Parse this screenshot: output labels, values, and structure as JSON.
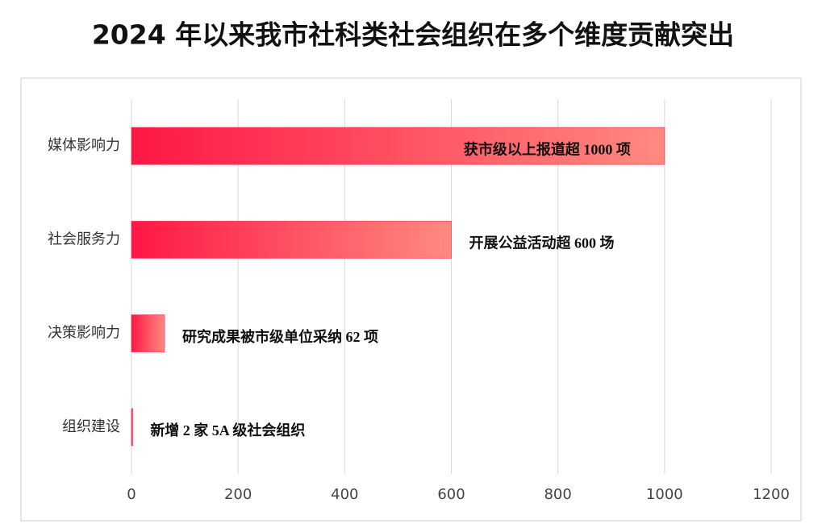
{
  "chart_data": {
    "type": "hbar",
    "title": "2024 年以来我市社科类社会组织在多个维度贡献突出",
    "categories": [
      "媒体影响力",
      "社会服务力",
      "决策影响力",
      "组织建设"
    ],
    "values": [
      1000,
      600,
      62,
      2
    ],
    "value_labels": [
      "获市级以上报道超 1000 项",
      "开展公益活动超 600 场",
      "研究成果被市级单位采纳 62 项",
      "新增 2 家 5A 级社会组织"
    ],
    "color": "#ff1744",
    "xlim": [
      0,
      1200
    ],
    "xticks": [
      0,
      200,
      400,
      600,
      800,
      1000,
      1200
    ],
    "grid": true
  }
}
